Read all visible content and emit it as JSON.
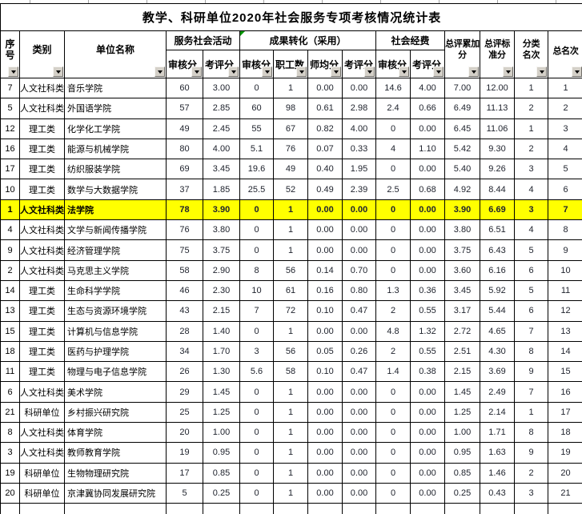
{
  "title": "教学、科研单位2020年社会服务专项考核情况统计表",
  "header": {
    "seq": "序号",
    "category": "类别",
    "unit_name": "单位名称",
    "groups": [
      {
        "label": "服务社会活动",
        "subs": [
          "审核分",
          "考评分"
        ]
      },
      {
        "label": "成果转化（采用）",
        "subs": [
          "审核分",
          "职工数",
          "师均分",
          "考评分"
        ]
      },
      {
        "label": "社会经费",
        "subs": [
          "审核分",
          "考评分"
        ]
      }
    ],
    "total_add": "总评累加\n分",
    "total_std": "总评标\n准分",
    "cat_rank": "分类\n名次",
    "total_rank": "总名次"
  },
  "icons": {
    "filter_button": "filter-dropdown-icon",
    "corner_flag": "green-corner-flag"
  },
  "colors": {
    "highlight_row": "#ffff00",
    "button_face": "#d4d0c8",
    "grid_border": "#000000",
    "flag_green": "#009900"
  },
  "rows": [
    {
      "seq": "7",
      "category": "人文社科类",
      "name": "音乐学院",
      "values": [
        "60",
        "3.00",
        "0",
        "1",
        "0.00",
        "0.00",
        "14.6",
        "4.00",
        "7.00",
        "12.00",
        "1",
        "1"
      ],
      "highlight": false
    },
    {
      "seq": "5",
      "category": "人文社科类",
      "name": "外国语学院",
      "values": [
        "57",
        "2.85",
        "60",
        "98",
        "0.61",
        "2.98",
        "2.4",
        "0.66",
        "6.49",
        "11.13",
        "2",
        "2"
      ],
      "highlight": false
    },
    {
      "seq": "12",
      "category": "理工类",
      "name": "化学化工学院",
      "values": [
        "49",
        "2.45",
        "55",
        "67",
        "0.82",
        "4.00",
        "0",
        "0.00",
        "6.45",
        "11.06",
        "1",
        "3"
      ],
      "highlight": false
    },
    {
      "seq": "16",
      "category": "理工类",
      "name": "能源与机械学院",
      "values": [
        "80",
        "4.00",
        "5.1",
        "76",
        "0.07",
        "0.33",
        "4",
        "1.10",
        "5.42",
        "9.30",
        "2",
        "4"
      ],
      "highlight": false
    },
    {
      "seq": "17",
      "category": "理工类",
      "name": "纺织服装学院",
      "values": [
        "69",
        "3.45",
        "19.6",
        "49",
        "0.40",
        "1.95",
        "0",
        "0.00",
        "5.40",
        "9.26",
        "3",
        "5"
      ],
      "highlight": false
    },
    {
      "seq": "10",
      "category": "理工类",
      "name": "数学与大数据学院",
      "values": [
        "37",
        "1.85",
        "25.5",
        "52",
        "0.49",
        "2.39",
        "2.5",
        "0.68",
        "4.92",
        "8.44",
        "4",
        "6"
      ],
      "highlight": false
    },
    {
      "seq": "1",
      "category": "人文社科类",
      "name": "法学院",
      "values": [
        "78",
        "3.90",
        "0",
        "1",
        "0.00",
        "0.00",
        "0",
        "0.00",
        "3.90",
        "6.69",
        "3",
        "7"
      ],
      "highlight": true
    },
    {
      "seq": "4",
      "category": "人文社科类",
      "name": "文学与新闻传播学院",
      "values": [
        "76",
        "3.80",
        "0",
        "1",
        "0.00",
        "0.00",
        "0",
        "0.00",
        "3.80",
        "6.51",
        "4",
        "8"
      ],
      "highlight": false
    },
    {
      "seq": "9",
      "category": "人文社科类",
      "name": "经济管理学院",
      "values": [
        "75",
        "3.75",
        "0",
        "1",
        "0.00",
        "0.00",
        "0",
        "0.00",
        "3.75",
        "6.43",
        "5",
        "9"
      ],
      "highlight": false
    },
    {
      "seq": "2",
      "category": "人文社科类",
      "name": "马克思主义学院",
      "values": [
        "58",
        "2.90",
        "8",
        "56",
        "0.14",
        "0.70",
        "0",
        "0.00",
        "3.60",
        "6.16",
        "6",
        "10"
      ],
      "highlight": false
    },
    {
      "seq": "14",
      "category": "理工类",
      "name": "生命科学学院",
      "values": [
        "46",
        "2.30",
        "10",
        "61",
        "0.16",
        "0.80",
        "1.3",
        "0.36",
        "3.45",
        "5.92",
        "5",
        "11"
      ],
      "highlight": false
    },
    {
      "seq": "13",
      "category": "理工类",
      "name": "生态与资源环境学院",
      "values": [
        "43",
        "2.15",
        "7",
        "72",
        "0.10",
        "0.47",
        "2",
        "0.55",
        "3.17",
        "5.44",
        "6",
        "12"
      ],
      "highlight": false
    },
    {
      "seq": "15",
      "category": "理工类",
      "name": "计算机与信息学院",
      "values": [
        "28",
        "1.40",
        "0",
        "1",
        "0.00",
        "0.00",
        "4.8",
        "1.32",
        "2.72",
        "4.65",
        "7",
        "13"
      ],
      "highlight": false
    },
    {
      "seq": "18",
      "category": "理工类",
      "name": "医药与护理学院",
      "values": [
        "34",
        "1.70",
        "3",
        "56",
        "0.05",
        "0.26",
        "2",
        "0.55",
        "2.51",
        "4.30",
        "8",
        "14"
      ],
      "highlight": false
    },
    {
      "seq": "11",
      "category": "理工类",
      "name": "物理与电子信息学院",
      "values": [
        "26",
        "1.30",
        "5.6",
        "58",
        "0.10",
        "0.47",
        "1.4",
        "0.38",
        "2.15",
        "3.69",
        "9",
        "15"
      ],
      "highlight": false
    },
    {
      "seq": "6",
      "category": "人文社科类",
      "name": "美术学院",
      "values": [
        "29",
        "1.45",
        "0",
        "1",
        "0.00",
        "0.00",
        "0",
        "0.00",
        "1.45",
        "2.49",
        "7",
        "16"
      ],
      "highlight": false
    },
    {
      "seq": "21",
      "category": "科研单位",
      "name": "乡村振兴研究院",
      "values": [
        "25",
        "1.25",
        "0",
        "1",
        "0.00",
        "0.00",
        "0",
        "0.00",
        "1.25",
        "2.14",
        "1",
        "17"
      ],
      "highlight": false
    },
    {
      "seq": "8",
      "category": "人文社科类",
      "name": "体育学院",
      "values": [
        "20",
        "1.00",
        "0",
        "1",
        "0.00",
        "0.00",
        "0",
        "0.00",
        "1.00",
        "1.71",
        "8",
        "18"
      ],
      "highlight": false
    },
    {
      "seq": "3",
      "category": "人文社科类",
      "name": "教师教育学院",
      "values": [
        "19",
        "0.95",
        "0",
        "1",
        "0.00",
        "0.00",
        "0",
        "0.00",
        "0.95",
        "1.63",
        "9",
        "19"
      ],
      "highlight": false
    },
    {
      "seq": "19",
      "category": "科研单位",
      "name": "生物物理研究院",
      "values": [
        "17",
        "0.85",
        "0",
        "1",
        "0.00",
        "0.00",
        "0",
        "0.00",
        "0.85",
        "1.46",
        "2",
        "20"
      ],
      "highlight": false
    },
    {
      "seq": "20",
      "category": "科研单位",
      "name": "京津冀协同发展研究院",
      "values": [
        "5",
        "0.25",
        "0",
        "1",
        "0.00",
        "0.00",
        "0",
        "0.00",
        "0.25",
        "0.43",
        "3",
        "21"
      ],
      "highlight": false
    }
  ]
}
